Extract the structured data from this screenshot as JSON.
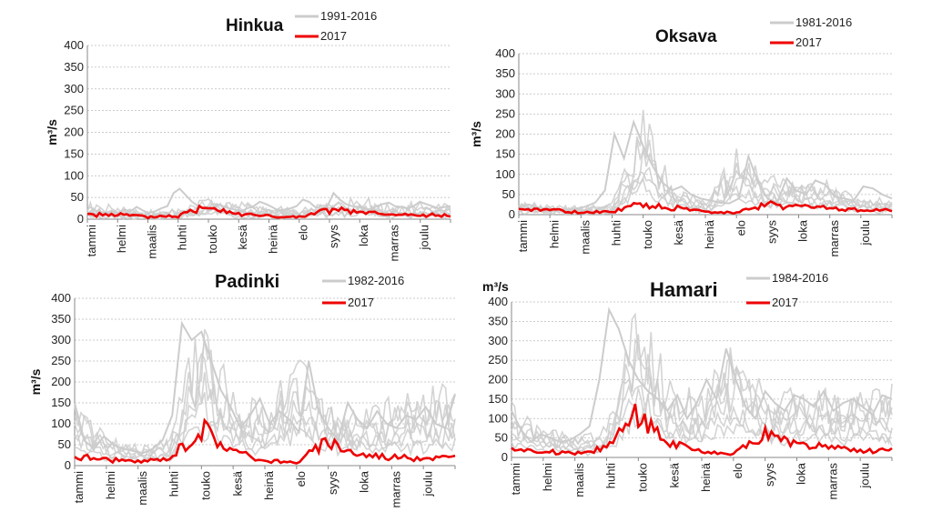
{
  "chart_data": [
    {
      "type": "line",
      "title": "Hinkua",
      "ylabel": "m³/s",
      "xlabel": "",
      "ylim": [
        0,
        400
      ],
      "yticks": [
        0,
        50,
        100,
        150,
        200,
        250,
        300,
        350,
        400
      ],
      "categories": [
        "tammi",
        "helmi",
        "maalis",
        "huhti",
        "touko",
        "kesä",
        "heinä",
        "elo",
        "syys",
        "loka",
        "marras",
        "joulu"
      ],
      "legend_position": "top",
      "grid": true,
      "series": [
        {
          "name": "1991-2016",
          "color": "#cccccc",
          "values": [
            30,
            22,
            15,
            18,
            45,
            30,
            28,
            22,
            35,
            40,
            28,
            30
          ],
          "noise": [
            10,
            12,
            15,
            12,
            18,
            15,
            22,
            18,
            28,
            20,
            14,
            18,
            25,
            30,
            60,
            70,
            55,
            40,
            30,
            25,
            20,
            35,
            30,
            25,
            22,
            18,
            25,
            30,
            40,
            35,
            28,
            20,
            22,
            25,
            30,
            45,
            40,
            28,
            25,
            30,
            60,
            45,
            35,
            30,
            28,
            25,
            22,
            30,
            35,
            38,
            30,
            28,
            25,
            30,
            40,
            35,
            30,
            25,
            28,
            30
          ]
        },
        {
          "name": "2017",
          "color": "#ee0000",
          "values": [
            13,
            12,
            6,
            9,
            38,
            15,
            8,
            5,
            25,
            18,
            12,
            10
          ]
        }
      ]
    },
    {
      "type": "line",
      "title": "Oksava",
      "ylabel": "m³/s",
      "xlabel": "",
      "ylim": [
        0,
        400
      ],
      "yticks": [
        0,
        50,
        100,
        150,
        200,
        250,
        300,
        350,
        400
      ],
      "categories": [
        "tammi",
        "helmi",
        "maalis",
        "huhti",
        "touko",
        "kesä",
        "heinä",
        "elo",
        "syys",
        "loka",
        "marras",
        "joulu"
      ],
      "legend_position": "top-right",
      "grid": true,
      "series": [
        {
          "name": "1981-2016",
          "color": "#cccccc",
          "values": [
            30,
            20,
            18,
            25,
            230,
            60,
            35,
            140,
            85,
            80,
            70,
            35
          ],
          "noise": [
            20,
            25,
            18,
            15,
            12,
            10,
            15,
            20,
            30,
            60,
            200,
            140,
            230,
            170,
            120,
            80,
            60,
            70,
            50,
            40,
            35,
            30,
            28,
            40,
            145,
            80,
            40,
            30,
            90,
            60,
            50,
            85,
            75,
            45,
            40,
            35,
            70,
            65,
            50,
            40
          ]
        },
        {
          "name": "2017",
          "color": "#ee0000",
          "values": [
            12,
            15,
            5,
            10,
            30,
            20,
            8,
            6,
            30,
            25,
            18,
            12
          ]
        }
      ]
    },
    {
      "type": "line",
      "title": "Padinki",
      "ylabel": "m³/s",
      "xlabel": "",
      "ylim": [
        0,
        400
      ],
      "yticks": [
        0,
        50,
        100,
        150,
        200,
        250,
        300,
        350,
        400
      ],
      "categories": [
        "tammi",
        "helmi",
        "maalis",
        "huhti",
        "touko",
        "kesä",
        "heinä",
        "elo",
        "syys",
        "loka",
        "marras",
        "joulu"
      ],
      "legend_position": "top-right",
      "grid": true,
      "series": [
        {
          "name": "1982-2016",
          "color": "#cccccc",
          "values": [
            150,
            70,
            40,
            60,
            340,
            160,
            130,
            250,
            150,
            130,
            140,
            170
          ],
          "noise": [
            150,
            60,
            40,
            70,
            50,
            40,
            35,
            30,
            40,
            60,
            120,
            340,
            300,
            320,
            250,
            180,
            140,
            90,
            120,
            160,
            100,
            130,
            110,
            80,
            250,
            130,
            90,
            60,
            150,
            110,
            90,
            130,
            100,
            90,
            120,
            110,
            140,
            100,
            90,
            170
          ]
        },
        {
          "name": "2017",
          "color": "#ee0000",
          "values": [
            25,
            18,
            10,
            20,
            105,
            40,
            15,
            8,
            68,
            30,
            25,
            22
          ]
        }
      ]
    },
    {
      "type": "line",
      "title": "Hamari",
      "ylabel": "m³/s",
      "xlabel": "",
      "ylim": [
        0,
        400
      ],
      "yticks": [
        0,
        50,
        100,
        150,
        200,
        250,
        300,
        350,
        400
      ],
      "categories": [
        "tammi",
        "helmi",
        "maalis",
        "huhti",
        "touko",
        "kesä",
        "heinä",
        "elo",
        "syys",
        "loka",
        "marras",
        "joulu"
      ],
      "legend_position": "top-right",
      "grid": true,
      "series": [
        {
          "name": "1984-2016",
          "color": "#cccccc",
          "values": [
            120,
            70,
            50,
            70,
            380,
            170,
            150,
            280,
            170,
            160,
            150,
            160
          ],
          "noise": [
            120,
            70,
            40,
            60,
            50,
            40,
            45,
            60,
            80,
            200,
            380,
            330,
            250,
            200,
            170,
            150,
            120,
            160,
            100,
            140,
            200,
            150,
            280,
            200,
            130,
            100,
            170,
            140,
            120,
            160,
            150,
            130,
            170,
            120,
            140,
            150,
            130,
            110,
            160,
            150
          ]
        },
        {
          "name": "2017",
          "color": "#ee0000",
          "values": [
            22,
            18,
            12,
            30,
            140,
            45,
            15,
            10,
            70,
            40,
            30,
            20
          ]
        }
      ]
    }
  ]
}
